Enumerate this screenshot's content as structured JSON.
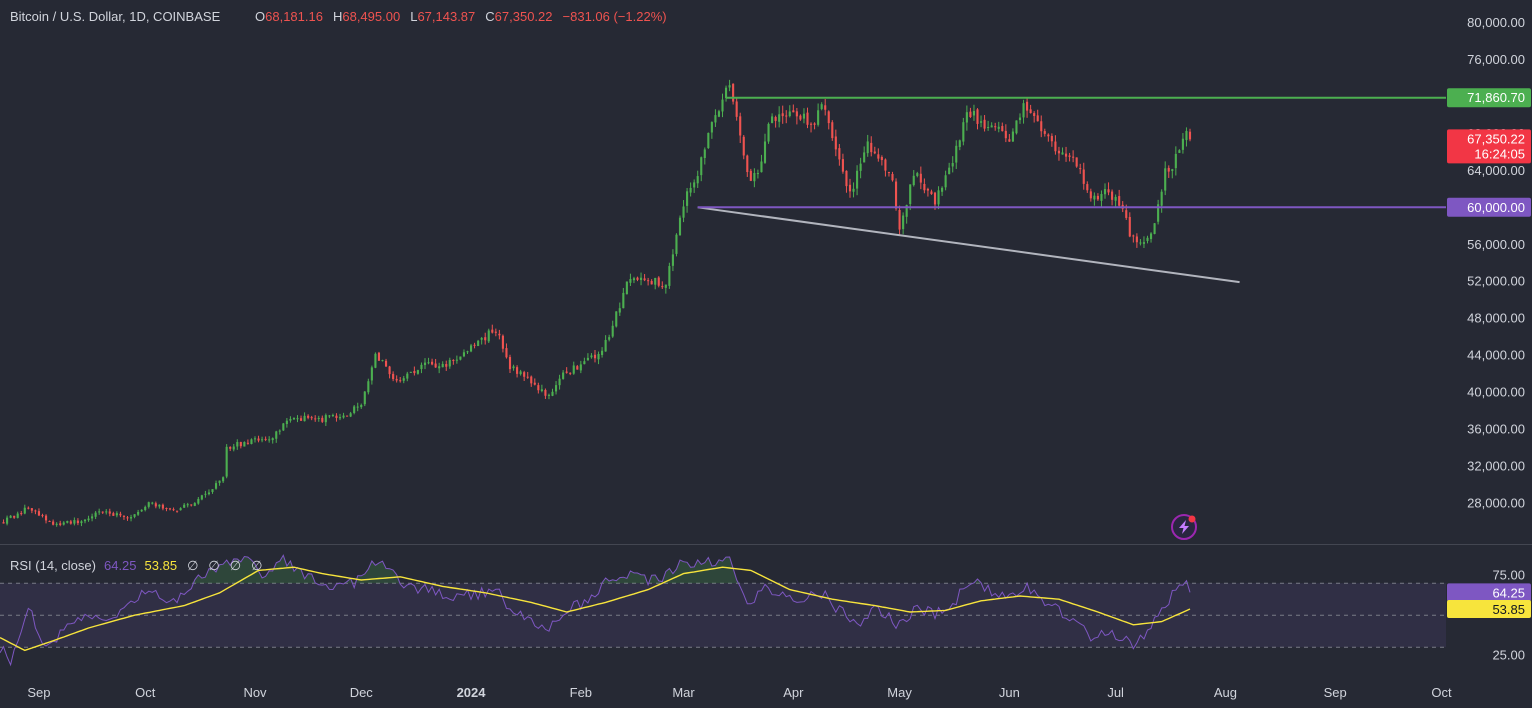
{
  "header": {
    "symbol": "Bitcoin / U.S. Dollar, 1D, COINBASE",
    "o_label": "O",
    "o_value": "68,181.16",
    "h_label": "H",
    "h_value": "68,495.00",
    "l_label": "L",
    "l_value": "67,143.87",
    "c_label": "C",
    "c_value": "67,350.22",
    "change": "−831.06 (−1.22%)"
  },
  "rsi_header": {
    "label": "RSI (14, close)",
    "rsi_value": "64.25",
    "ma_value": "53.85",
    "nulls": [
      "∅",
      "∅",
      "∅",
      "∅"
    ]
  },
  "colors": {
    "background": "#262934",
    "up": "#26a69a",
    "up_candle": "#4caf50",
    "down": "#ef5350",
    "resistance": "#4caf50",
    "support": "#7e57c2",
    "trendline": "#b2b5be",
    "rsi_line": "#7e57c2",
    "rsi_ma": "#f7e43c",
    "price_tag": "#f23645"
  },
  "icons": {
    "alert": "lightning-icon"
  },
  "chart_data": {
    "type": "candlestick",
    "price_axis": {
      "ylim": [
        24000,
        82000
      ],
      "ticks": [
        "80,000.00",
        "76,000.00",
        "72,000.00",
        "68,000.00",
        "64,000.00",
        "60,000.00",
        "56,000.00",
        "52,000.00",
        "48,000.00",
        "44,000.00",
        "40,000.00",
        "36,000.00",
        "32,000.00",
        "28,000.00"
      ]
    },
    "time_axis": {
      "labels": [
        {
          "label": "Sep",
          "date": "2023-09-01"
        },
        {
          "label": "Oct",
          "date": "2023-10-01"
        },
        {
          "label": "Nov",
          "date": "2023-11-01"
        },
        {
          "label": "Dec",
          "date": "2023-12-01"
        },
        {
          "label": "2024",
          "date": "2024-01-01"
        },
        {
          "label": "Feb",
          "date": "2024-02-01"
        },
        {
          "label": "Mar",
          "date": "2024-03-01"
        },
        {
          "label": "Apr",
          "date": "2024-04-01"
        },
        {
          "label": "May",
          "date": "2024-05-01"
        },
        {
          "label": "Jun",
          "date": "2024-06-01"
        },
        {
          "label": "Jul",
          "date": "2024-07-01"
        },
        {
          "label": "Aug",
          "date": "2024-08-01"
        },
        {
          "label": "Sep",
          "date": "2024-09-01"
        },
        {
          "label": "Oct",
          "date": "2024-10-01"
        }
      ],
      "range": [
        "2023-08-21",
        "2024-10-02"
      ]
    },
    "close_path": [
      [
        "2023-08-22",
        26000
      ],
      [
        "2023-08-29",
        27500
      ],
      [
        "2023-09-05",
        25800
      ],
      [
        "2023-09-12",
        26000
      ],
      [
        "2023-09-19",
        27100
      ],
      [
        "2023-09-26",
        26400
      ],
      [
        "2023-10-02",
        27900
      ],
      [
        "2023-10-10",
        27400
      ],
      [
        "2023-10-16",
        28300
      ],
      [
        "2023-10-23",
        30800
      ],
      [
        "2023-10-24",
        33900
      ],
      [
        "2023-10-27",
        34300
      ],
      [
        "2023-11-06",
        35100
      ],
      [
        "2023-11-10",
        37200
      ],
      [
        "2023-11-20",
        37100
      ],
      [
        "2023-11-28",
        37800
      ],
      [
        "2023-12-01",
        38800
      ],
      [
        "2023-12-05",
        44000
      ],
      [
        "2023-12-11",
        41300
      ],
      [
        "2023-12-18",
        42800
      ],
      [
        "2023-12-25",
        43000
      ],
      [
        "2024-01-02",
        45200
      ],
      [
        "2024-01-08",
        46800
      ],
      [
        "2024-01-12",
        42800
      ],
      [
        "2024-01-18",
        41100
      ],
      [
        "2024-01-23",
        39500
      ],
      [
        "2024-01-26",
        41800
      ],
      [
        "2024-02-02",
        43200
      ],
      [
        "2024-02-07",
        44300
      ],
      [
        "2024-02-10",
        47200
      ],
      [
        "2024-02-14",
        51800
      ],
      [
        "2024-02-20",
        52100
      ],
      [
        "2024-02-25",
        51600
      ],
      [
        "2024-02-28",
        57000
      ],
      [
        "2024-03-02",
        62100
      ],
      [
        "2024-03-05",
        63700
      ],
      [
        "2024-03-08",
        68300
      ],
      [
        "2024-03-14",
        73100
      ],
      [
        "2024-03-16",
        69500
      ],
      [
        "2024-03-20",
        62400
      ],
      [
        "2024-03-22",
        64000
      ],
      [
        "2024-03-26",
        70000
      ],
      [
        "2024-04-01",
        69700
      ],
      [
        "2024-04-07",
        69400
      ],
      [
        "2024-04-09",
        71500
      ],
      [
        "2024-04-13",
        66000
      ],
      [
        "2024-04-17",
        61500
      ],
      [
        "2024-04-22",
        66800
      ],
      [
        "2024-04-29",
        63200
      ],
      [
        "2024-05-01",
        57300
      ],
      [
        "2024-05-05",
        63800
      ],
      [
        "2024-05-11",
        60800
      ],
      [
        "2024-05-16",
        65000
      ],
      [
        "2024-05-20",
        70600
      ],
      [
        "2024-05-26",
        68600
      ],
      [
        "2024-06-01",
        67700
      ],
      [
        "2024-06-05",
        71100
      ],
      [
        "2024-06-08",
        69300
      ],
      [
        "2024-06-14",
        66000
      ],
      [
        "2024-06-20",
        64900
      ],
      [
        "2024-06-24",
        60500
      ],
      [
        "2024-06-28",
        61500
      ],
      [
        "2024-07-03",
        60200
      ],
      [
        "2024-07-05",
        56600
      ],
      [
        "2024-07-08",
        56300
      ],
      [
        "2024-07-12",
        57900
      ],
      [
        "2024-07-15",
        64100
      ],
      [
        "2024-07-17",
        64300
      ],
      [
        "2024-07-20",
        67200
      ],
      [
        "2024-07-21",
        68181
      ],
      [
        "2024-07-22",
        67350
      ]
    ],
    "last_candle": {
      "o": 68181.16,
      "h": 68495.0,
      "l": 67143.87,
      "c": 67350.22
    },
    "horizontal_lines": [
      {
        "price": 71860.7,
        "label": "71,860.70",
        "from": "2024-03-13",
        "color": "#4caf50"
      },
      {
        "price": 60000.0,
        "label": "60,000.00",
        "from": "2024-03-05",
        "color": "#7e57c2"
      }
    ],
    "trendline": {
      "from": [
        "2024-03-05",
        60000
      ],
      "to": [
        "2024-08-05",
        51900
      ]
    },
    "last_price_tag": {
      "price": "67,350.22",
      "countdown": "16:24:05"
    },
    "rsi": {
      "ylim": [
        12,
        92
      ],
      "levels": [
        70,
        50,
        30
      ],
      "axis_ticks": [
        "75.00",
        "25.00"
      ],
      "last_value_label": "64.25",
      "ma_value_label": "53.85",
      "path": [
        [
          "2023-08-21",
          30
        ],
        [
          "2023-08-24",
          22
        ],
        [
          "2023-08-29",
          55
        ],
        [
          "2023-09-03",
          30
        ],
        [
          "2023-09-08",
          40
        ],
        [
          "2023-09-14",
          52
        ],
        [
          "2023-09-20",
          46
        ],
        [
          "2023-09-26",
          55
        ],
        [
          "2023-10-02",
          66
        ],
        [
          "2023-10-09",
          58
        ],
        [
          "2023-10-16",
          72
        ],
        [
          "2023-10-23",
          82
        ],
        [
          "2023-10-30",
          88
        ],
        [
          "2023-11-03",
          76
        ],
        [
          "2023-11-09",
          84
        ],
        [
          "2023-11-15",
          76
        ],
        [
          "2023-11-20",
          70
        ],
        [
          "2023-11-24",
          68
        ],
        [
          "2023-11-29",
          70
        ],
        [
          "2023-12-05",
          84
        ],
        [
          "2023-12-09",
          82
        ],
        [
          "2023-12-14",
          66
        ],
        [
          "2023-12-19",
          68
        ],
        [
          "2023-12-26",
          62
        ],
        [
          "2024-01-02",
          63
        ],
        [
          "2024-01-08",
          66
        ],
        [
          "2024-01-13",
          52
        ],
        [
          "2024-01-17",
          50
        ],
        [
          "2024-01-22",
          40
        ],
        [
          "2024-01-27",
          52
        ],
        [
          "2024-02-02",
          58
        ],
        [
          "2024-02-08",
          70
        ],
        [
          "2024-02-13",
          76
        ],
        [
          "2024-02-19",
          72
        ],
        [
          "2024-02-25",
          74
        ],
        [
          "2024-02-29",
          84
        ],
        [
          "2024-03-05",
          82
        ],
        [
          "2024-03-10",
          84
        ],
        [
          "2024-03-14",
          86
        ],
        [
          "2024-03-19",
          58
        ],
        [
          "2024-03-24",
          66
        ],
        [
          "2024-03-29",
          62
        ],
        [
          "2024-04-04",
          60
        ],
        [
          "2024-04-09",
          64
        ],
        [
          "2024-04-14",
          53
        ],
        [
          "2024-04-19",
          44
        ],
        [
          "2024-04-24",
          55
        ],
        [
          "2024-04-30",
          45
        ],
        [
          "2024-05-01",
          44
        ],
        [
          "2024-05-06",
          55
        ],
        [
          "2024-05-11",
          51
        ],
        [
          "2024-05-17",
          60
        ],
        [
          "2024-05-21",
          72
        ],
        [
          "2024-05-27",
          64
        ],
        [
          "2024-06-02",
          62
        ],
        [
          "2024-06-06",
          68
        ],
        [
          "2024-06-12",
          57
        ],
        [
          "2024-06-18",
          48
        ],
        [
          "2024-06-24",
          36
        ],
        [
          "2024-06-29",
          40
        ],
        [
          "2024-07-03",
          36
        ],
        [
          "2024-07-06",
          30
        ],
        [
          "2024-07-10",
          40
        ],
        [
          "2024-07-14",
          54
        ],
        [
          "2024-07-18",
          66
        ],
        [
          "2024-07-21",
          70
        ],
        [
          "2024-07-22",
          64.25
        ]
      ],
      "ma_path": [
        [
          "2023-08-21",
          36
        ],
        [
          "2023-08-28",
          28
        ],
        [
          "2023-09-05",
          34
        ],
        [
          "2023-09-15",
          42
        ],
        [
          "2023-09-28",
          50
        ],
        [
          "2023-10-12",
          56
        ],
        [
          "2023-10-22",
          64
        ],
        [
          "2023-11-02",
          78
        ],
        [
          "2023-11-12",
          80
        ],
        [
          "2023-11-20",
          76
        ],
        [
          "2023-12-01",
          72
        ],
        [
          "2023-12-12",
          74
        ],
        [
          "2023-12-24",
          68
        ],
        [
          "2024-01-05",
          64
        ],
        [
          "2024-01-18",
          58
        ],
        [
          "2024-01-28",
          52
        ],
        [
          "2024-02-08",
          58
        ],
        [
          "2024-02-20",
          66
        ],
        [
          "2024-03-01",
          76
        ],
        [
          "2024-03-12",
          80
        ],
        [
          "2024-03-20",
          78
        ],
        [
          "2024-03-31",
          66
        ],
        [
          "2024-04-12",
          60
        ],
        [
          "2024-04-24",
          56
        ],
        [
          "2024-05-04",
          52
        ],
        [
          "2024-05-14",
          53
        ],
        [
          "2024-05-24",
          59
        ],
        [
          "2024-06-04",
          62
        ],
        [
          "2024-06-15",
          60
        ],
        [
          "2024-06-26",
          52
        ],
        [
          "2024-07-06",
          44
        ],
        [
          "2024-07-14",
          46
        ],
        [
          "2024-07-22",
          53.85
        ]
      ]
    }
  }
}
